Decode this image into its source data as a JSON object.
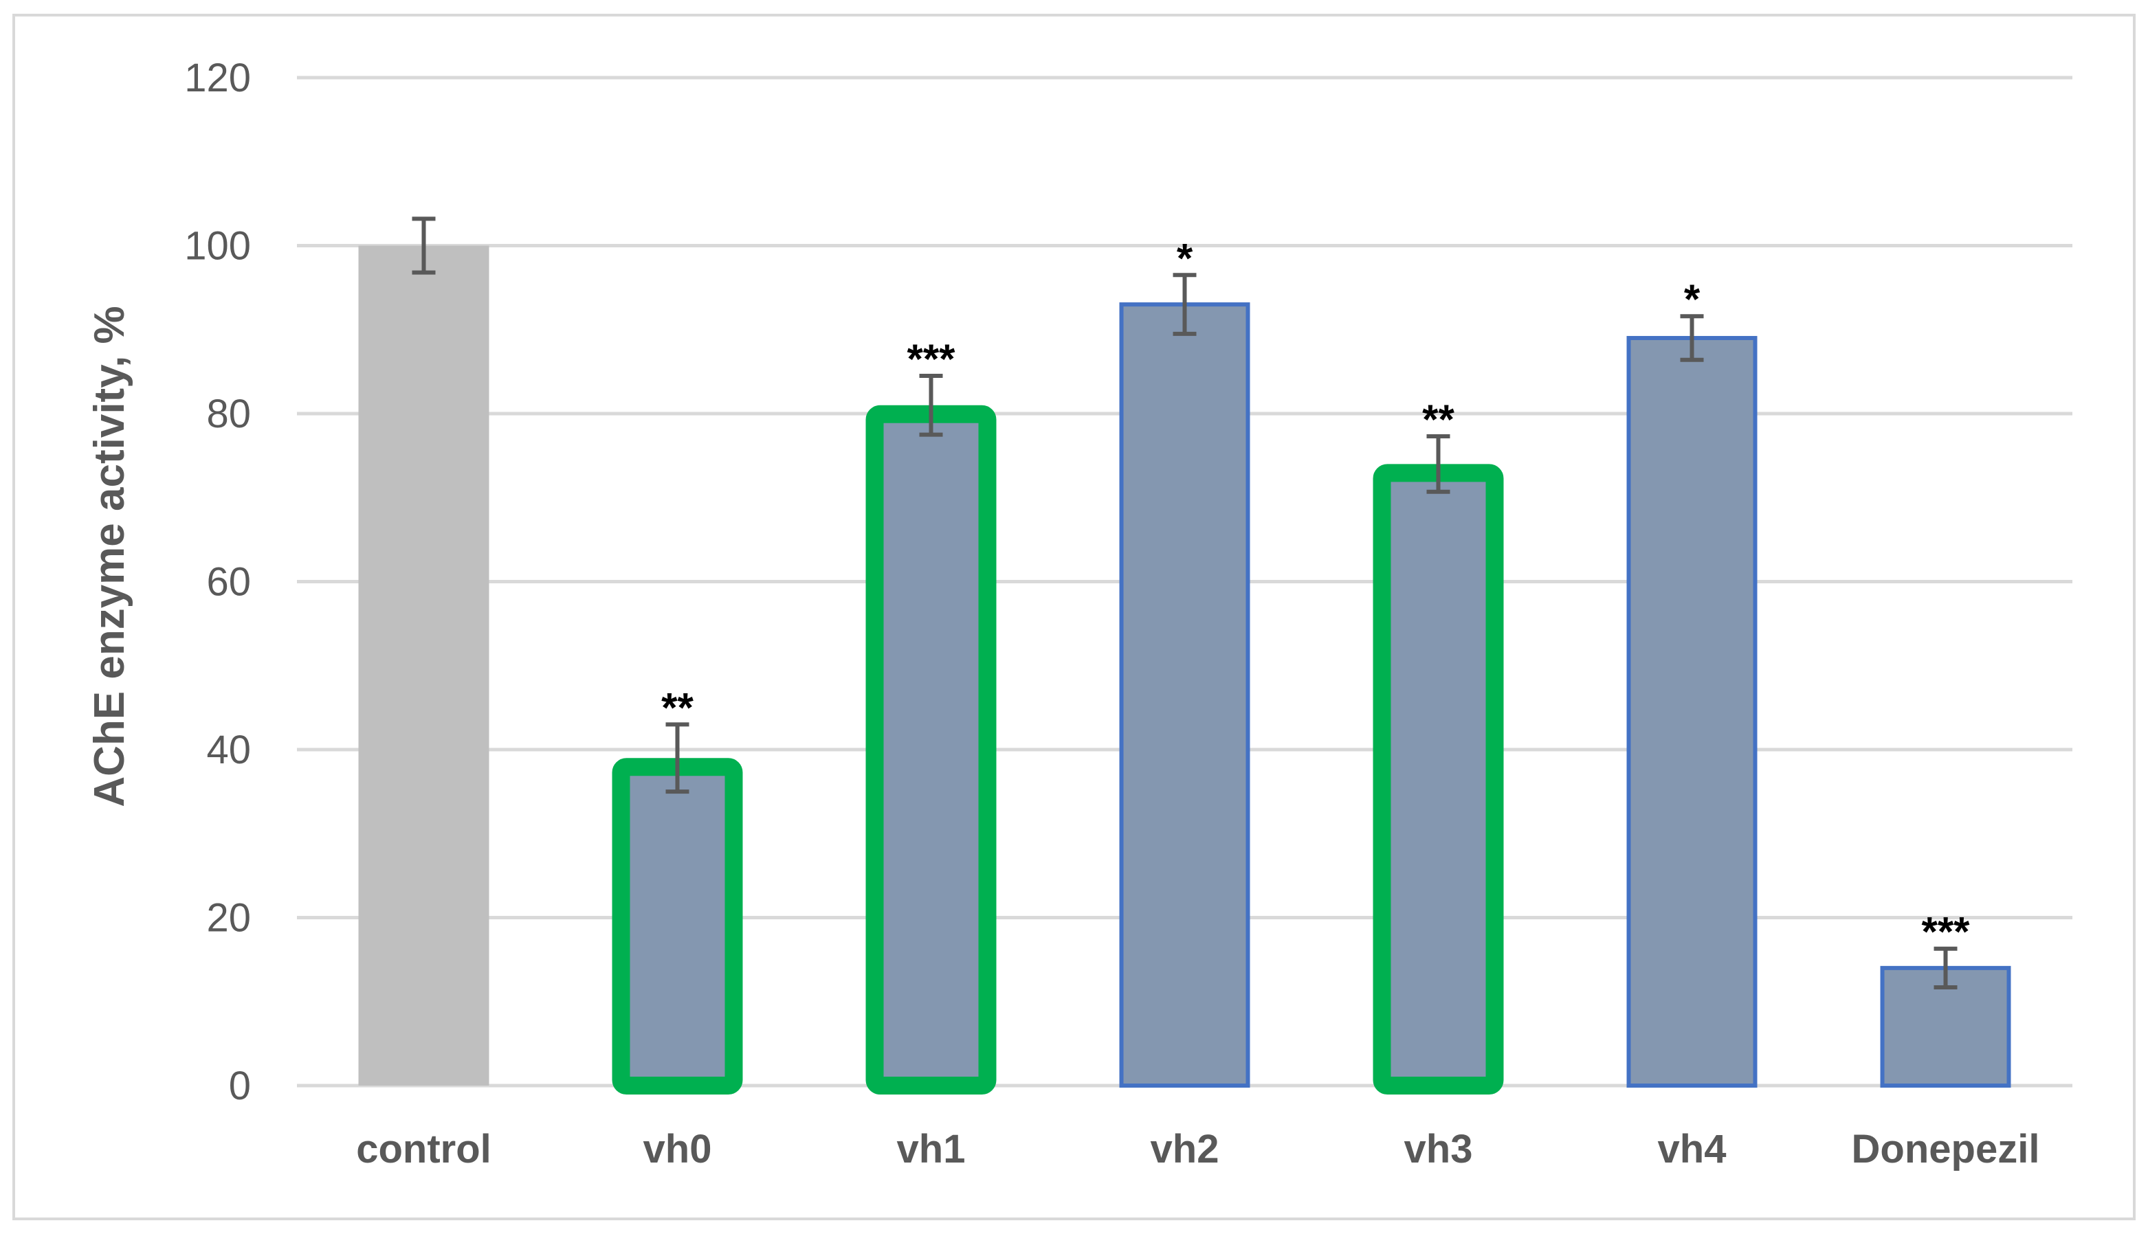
{
  "chart_data": {
    "type": "bar",
    "title": "",
    "xlabel": "",
    "ylabel": "AChE enzyme activity, %",
    "ylim": [
      0,
      120
    ],
    "yticks": [
      0,
      20,
      40,
      60,
      80,
      100,
      120
    ],
    "grid": true,
    "legend": "none",
    "categories": [
      "control",
      "vh0",
      "vh1",
      "vh2",
      "vh3",
      "vh4",
      "Donepezil"
    ],
    "values": [
      100,
      39,
      81,
      93,
      74,
      89,
      14
    ],
    "errors": [
      3.2,
      4.0,
      3.5,
      3.5,
      3.3,
      2.6,
      2.3
    ],
    "significance": [
      "",
      "**",
      "***",
      "*",
      "**",
      "*",
      "***"
    ],
    "highlighted": [
      false,
      true,
      true,
      false,
      true,
      false,
      false
    ],
    "colors": {
      "control_fill": "#bfbfbf",
      "bar_fill": "#8497b0",
      "bar_border": "#4472c4",
      "highlight_border": "#00b050",
      "gridline": "#d9d9d9",
      "error_bar": "#595959"
    }
  }
}
